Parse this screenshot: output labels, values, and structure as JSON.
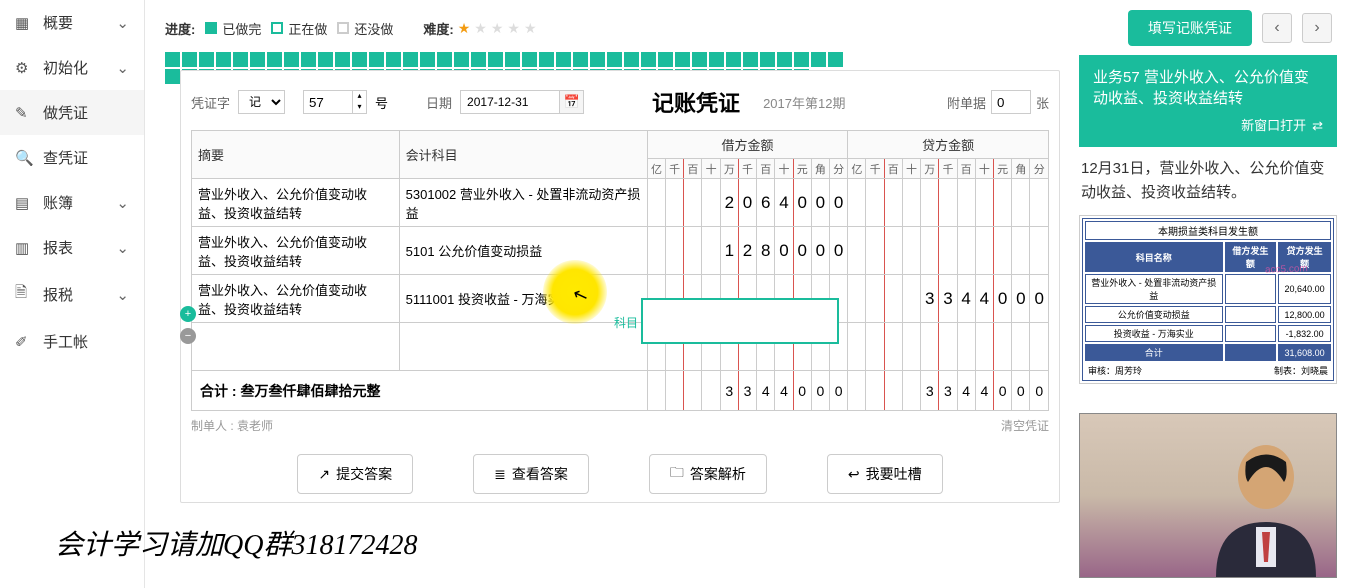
{
  "sidebar": {
    "items": [
      {
        "icon": "grid",
        "label": "概要",
        "chev": "⌄"
      },
      {
        "icon": "gear",
        "label": "初始化",
        "chev": "⌄"
      },
      {
        "icon": "pencil",
        "label": "做凭证",
        "chev": ""
      },
      {
        "icon": "search",
        "label": "查凭证",
        "chev": ""
      },
      {
        "icon": "book",
        "label": "账簿",
        "chev": "⌄"
      },
      {
        "icon": "report",
        "label": "报表",
        "chev": "⌄"
      },
      {
        "icon": "file",
        "label": "报税",
        "chev": "⌄"
      },
      {
        "icon": "pen",
        "label": "手工帐",
        "chev": ""
      }
    ]
  },
  "topbar": {
    "progress_label": "进度:",
    "done": "已做完",
    "doing": "正在做",
    "not": "还没做",
    "difficulty_label": "难度:",
    "stars_on": 1,
    "stars_total": 5,
    "main_button": "填写记账凭证",
    "progress_cells_total": 78,
    "progress_current": 56
  },
  "voucher": {
    "label_char": "凭证字",
    "char_value": "记",
    "number": "57",
    "number_suffix": "号",
    "date_label": "日期",
    "date": "2017-12-31",
    "title": "记账凭证",
    "period": "2017年第12期",
    "attach_label": "附单据",
    "attach_count": "0",
    "attach_unit": "张",
    "columns": {
      "summary": "摘要",
      "account": "会计科目",
      "debit": "借方金额",
      "credit": "贷方金额"
    },
    "units": [
      "亿",
      "千",
      "百",
      "十",
      "万",
      "千",
      "百",
      "十",
      "元",
      "角",
      "分"
    ],
    "rows": [
      {
        "summary": "营业外收入、公允价值变动收益、投资收益结转",
        "account": "5301002 营业外收入 - 处置非流动资产损益",
        "debit": [
          "",
          "",
          "",
          "",
          "2",
          "0",
          "6",
          "4",
          "0",
          "0",
          "0"
        ],
        "credit": [
          "",
          "",
          "",
          "",
          "",
          "",
          "",
          "",
          "",
          "",
          ""
        ]
      },
      {
        "summary": "营业外收入、公允价值变动收益、投资收益结转",
        "account": "5101 公允价值变动损益",
        "debit": [
          "",
          "",
          "",
          "",
          "1",
          "2",
          "8",
          "0",
          "0",
          "0",
          "0"
        ],
        "credit": [
          "",
          "",
          "",
          "",
          "",
          "",
          "",
          "",
          "",
          "",
          ""
        ]
      },
      {
        "summary": "营业外收入、公允价值变动收益、投资收益结转",
        "account": "5111001 投资收益 - 万海实业",
        "debit": [
          "",
          "",
          "",
          "",
          "",
          "",
          "",
          "",
          "",
          "",
          ""
        ],
        "credit": [
          "",
          "",
          "",
          "",
          "3",
          "3",
          "4",
          "4",
          "0",
          "0",
          "0"
        ]
      }
    ],
    "popup_label": "科目",
    "total_label": "合计 : 叁万叁仟肆佰肆拾元整",
    "total_debit": [
      "",
      "",
      "",
      "",
      "3",
      "3",
      "4",
      "4",
      "0",
      "0",
      "0"
    ],
    "total_credit": [
      "",
      "",
      "",
      "",
      "3",
      "3",
      "4",
      "4",
      "0",
      "0",
      "0"
    ],
    "maker_label": "制单人 :",
    "maker": "袁老师",
    "clear": "清空凭证"
  },
  "actions": {
    "submit": "提交答案",
    "view": "查看答案",
    "analysis": "答案解析",
    "feedback": "我要吐槽"
  },
  "task": {
    "title": "业务57 营业外收入、公允价值变动收益、投资收益结转",
    "new_window": "新窗口打开",
    "desc": "12月31日，营业外收入、公允价值变动收益、投资收益结转。",
    "mini": {
      "title": "本期损益类科目发生额",
      "headers": [
        "科目名称",
        "借方发生额",
        "贷方发生额"
      ],
      "rows": [
        [
          "营业外收入 - 处置非流动资产损益",
          "",
          "20,640.00"
        ],
        [
          "公允价值变动损益",
          "",
          "12,800.00"
        ],
        [
          "投资收益 - 万海实业",
          "",
          "-1,832.00"
        ],
        [
          "合计",
          "",
          "31,608.00"
        ]
      ],
      "footer_left": "审核：周芳玲",
      "footer_right": "制表：刘晓晨"
    }
  },
  "watermark": "会计学习请加QQ群318172428"
}
